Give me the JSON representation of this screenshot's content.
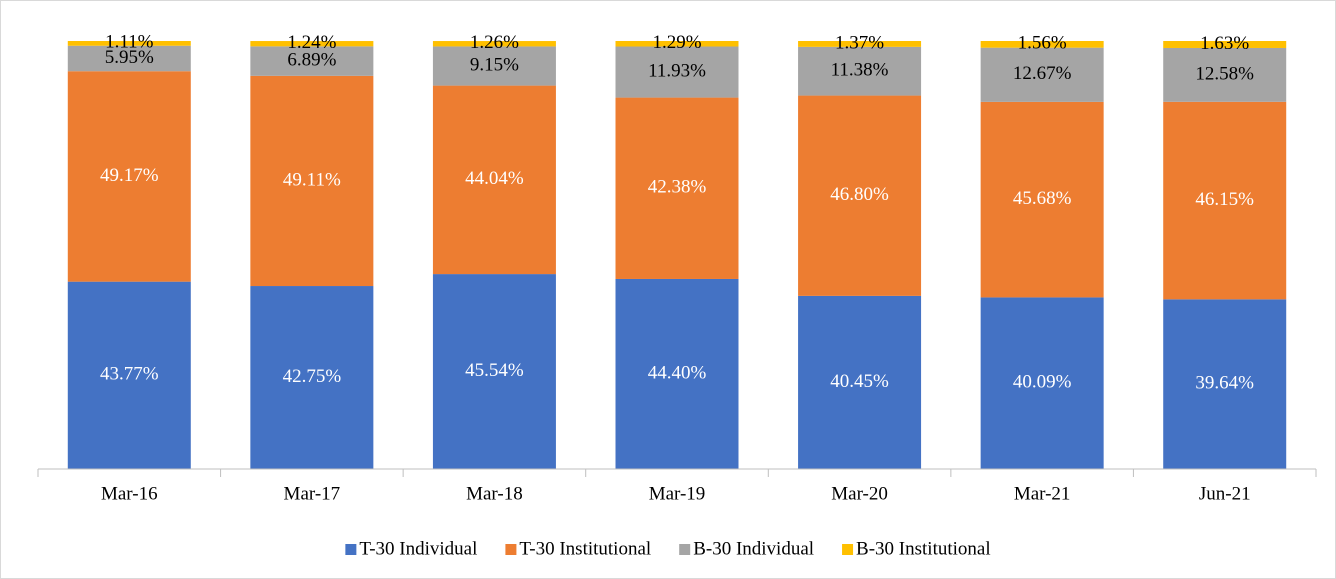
{
  "chart_data": {
    "type": "stacked_bar",
    "categories": [
      "Mar-16",
      "Mar-17",
      "Mar-18",
      "Mar-19",
      "Mar-20",
      "Mar-21",
      "Jun-21"
    ],
    "series": [
      {
        "name": "T-30 Individual",
        "color": "#4472c4",
        "values": [
          43.77,
          42.75,
          45.54,
          44.4,
          40.45,
          40.09,
          39.64
        ],
        "value_labels": [
          "43.77%",
          "42.75%",
          "45.54%",
          "44.40%",
          "40.45%",
          "40.09%",
          "39.64%"
        ]
      },
      {
        "name": "T-30 Institutional",
        "color": "#ed7d31",
        "values": [
          49.17,
          49.11,
          44.04,
          42.38,
          46.8,
          45.68,
          46.15
        ],
        "value_labels": [
          "49.17%",
          "49.11%",
          "44.04%",
          "42.38%",
          "46.80%",
          "45.68%",
          "46.15%"
        ]
      },
      {
        "name": "B-30 Individual",
        "color": "#a5a5a5",
        "values": [
          5.95,
          6.89,
          9.15,
          11.93,
          11.38,
          12.67,
          12.58
        ],
        "value_labels": [
          "5.95%",
          "6.89%",
          "9.15%",
          "11.93%",
          "11.38%",
          "12.67%",
          "12.58%"
        ]
      },
      {
        "name": "B-30 Institutional",
        "color": "#ffc000",
        "values": [
          1.11,
          1.24,
          1.26,
          1.29,
          1.37,
          1.56,
          1.63
        ],
        "value_labels": [
          "1.11%",
          "1.24%",
          "1.26%",
          "1.29%",
          "1.37%",
          "1.56%",
          "1.63%"
        ]
      }
    ],
    "ylim": [
      0,
      100
    ],
    "legend": "bottom"
  }
}
